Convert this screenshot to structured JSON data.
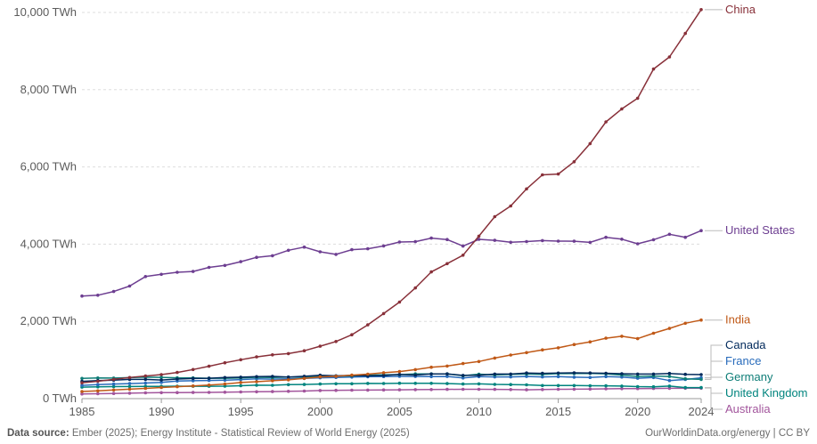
{
  "chart_data": {
    "type": "line",
    "title": "",
    "xlabel": "",
    "ylabel": "",
    "xlim": [
      1985,
      2024
    ],
    "ylim": [
      0,
      10000
    ],
    "y_ticks": [
      0,
      2000,
      4000,
      6000,
      8000,
      10000
    ],
    "y_tick_labels": [
      "0 TWh",
      "2,000 TWh",
      "4,000 TWh",
      "6,000 TWh",
      "8,000 TWh",
      "10,000 TWh"
    ],
    "x_ticks": [
      1985,
      1990,
      1995,
      2000,
      2005,
      2010,
      2015,
      2020,
      2024
    ],
    "x_tick_labels": [
      "1985",
      "1990",
      "1995",
      "2000",
      "2005",
      "2010",
      "2015",
      "2020",
      "2024"
    ],
    "grid": "horizontal dashed",
    "legend": "right, labels at line ends",
    "x": [
      1985,
      1986,
      1987,
      1988,
      1989,
      1990,
      1991,
      1992,
      1993,
      1994,
      1995,
      1996,
      1997,
      1998,
      1999,
      2000,
      2001,
      2002,
      2003,
      2004,
      2005,
      2006,
      2007,
      2008,
      2009,
      2010,
      2011,
      2012,
      2013,
      2014,
      2015,
      2016,
      2017,
      2018,
      2019,
      2020,
      2021,
      2022,
      2023,
      2024
    ],
    "series": [
      {
        "name": "China",
        "color": "#883039",
        "values": [
          411,
          449,
          497,
          545,
          585,
          621,
          678,
          754,
          838,
          929,
          1007,
          1081,
          1134,
          1167,
          1239,
          1356,
          1480,
          1654,
          1911,
          2203,
          2500,
          2866,
          3282,
          3496,
          3715,
          4208,
          4713,
          4988,
          5432,
          5795,
          5815,
          6133,
          6604,
          7166,
          7503,
          7779,
          8534,
          8849,
          9456,
          10073
        ]
      },
      {
        "name": "United States",
        "color": "#6d3e91",
        "values": [
          2657,
          2677,
          2774,
          2914,
          3161,
          3218,
          3271,
          3292,
          3398,
          3450,
          3547,
          3660,
          3700,
          3840,
          3924,
          3802,
          3736,
          3858,
          3880,
          3953,
          4055,
          4065,
          4157,
          4119,
          3950,
          4125,
          4100,
          4048,
          4066,
          4093,
          4078,
          4077,
          4047,
          4178,
          4128,
          4010,
          4116,
          4255,
          4178,
          4350
        ]
      },
      {
        "name": "India",
        "color": "#c05917",
        "values": [
          184,
          201,
          223,
          244,
          264,
          289,
          309,
          327,
          351,
          377,
          418,
          437,
          463,
          487,
          523,
          562,
          578,
          609,
          633,
          670,
          700,
          752,
          813,
          843,
          907,
          960,
          1050,
          1129,
          1192,
          1262,
          1316,
          1402,
          1471,
          1564,
          1616,
          1554,
          1693,
          1819,
          1952,
          2034
        ]
      },
      {
        "name": "Canada",
        "color": "#00295b",
        "values": [
          446,
          466,
          480,
          497,
          497,
          482,
          507,
          520,
          527,
          547,
          556,
          570,
          576,
          558,
          578,
          605,
          591,
          601,
          591,
          600,
          627,
          611,
          639,
          641,
          602,
          603,
          636,
          636,
          663,
          654,
          662,
          668,
          663,
          657,
          646,
          635,
          636,
          651,
          628,
          621
        ]
      },
      {
        "name": "France",
        "color": "#286bbb",
        "values": [
          344,
          363,
          377,
          389,
          403,
          420,
          454,
          463,
          471,
          477,
          494,
          513,
          504,
          511,
          524,
          540,
          549,
          558,
          566,
          572,
          576,
          574,
          570,
          574,
          535,
          569,
          562,
          562,
          574,
          563,
          569,
          556,
          549,
          572,
          560,
          528,
          547,
          468,
          495,
          540
        ]
      },
      {
        "name": "Germany",
        "color": "#0e7d77",
        "values": [
          522,
          535,
          532,
          543,
          555,
          550,
          540,
          537,
          527,
          528,
          537,
          553,
          549,
          557,
          557,
          576,
          586,
          587,
          608,
          617,
          622,
          640,
          640,
          640,
          595,
          633,
          613,
          630,
          638,
          627,
          648,
          649,
          654,
          642,
          610,
          574,
          586,
          574,
          514,
          498
        ]
      },
      {
        "name": "United Kingdom",
        "color": "#00847e",
        "values": [
          297,
          307,
          310,
          314,
          317,
          319,
          323,
          321,
          321,
          323,
          334,
          347,
          345,
          361,
          367,
          377,
          384,
          385,
          393,
          392,
          398,
          397,
          397,
          389,
          377,
          382,
          368,
          364,
          358,
          338,
          338,
          338,
          335,
          332,
          324,
          312,
          306,
          325,
          286,
          286
        ]
      },
      {
        "name": "Australia",
        "color": "#a2559c",
        "values": [
          121,
          127,
          134,
          141,
          149,
          155,
          156,
          158,
          161,
          166,
          172,
          177,
          182,
          190,
          197,
          209,
          215,
          219,
          221,
          226,
          229,
          233,
          236,
          240,
          243,
          241,
          240,
          236,
          229,
          234,
          243,
          245,
          249,
          253,
          258,
          260,
          262,
          267,
          269,
          273
        ]
      }
    ]
  },
  "footer": {
    "source_label": "Data source:",
    "source_text": "Ember (2025); Energy Institute - Statistical Review of World Energy (2025)",
    "credit": "OurWorldinData.org/energy | CC BY"
  }
}
